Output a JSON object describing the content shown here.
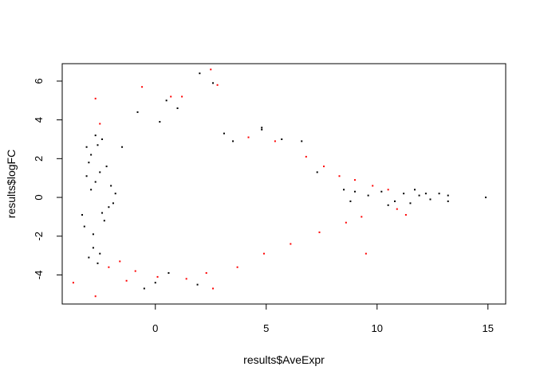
{
  "chart_data": {
    "type": "scatter",
    "title": "",
    "xlabel": "results$AveExpr",
    "ylabel": "results$logFC",
    "xlim": [
      -4.2,
      15.8
    ],
    "ylim": [
      -5.5,
      6.9
    ],
    "x_ticks": [
      0,
      5,
      10,
      15
    ],
    "y_ticks": [
      -4,
      -2,
      0,
      2,
      4,
      6
    ],
    "grid": false,
    "legend": "none",
    "series": [
      {
        "color": "#000000",
        "points": [
          [
            -3.1,
            2.6
          ],
          [
            -2.9,
            2.2
          ],
          [
            -3.3,
            -0.9
          ],
          [
            -2.8,
            -2.6
          ],
          [
            -3.0,
            1.8
          ],
          [
            -2.7,
            3.2
          ],
          [
            -3.2,
            -1.5
          ],
          [
            -2.9,
            0.4
          ],
          [
            -3.0,
            -3.1
          ],
          [
            -2.6,
            2.7
          ],
          [
            -2.5,
            -2.9
          ],
          [
            -3.1,
            1.1
          ],
          [
            -2.8,
            -1.9
          ],
          [
            -2.4,
            3.0
          ],
          [
            -2.6,
            -3.4
          ],
          [
            -2.2,
            1.6
          ],
          [
            -2.3,
            -1.2
          ],
          [
            -2.7,
            0.8
          ],
          [
            -2.1,
            -0.5
          ],
          [
            -2.0,
            0.6
          ],
          [
            -1.9,
            -0.3
          ],
          [
            -1.8,
            0.2
          ],
          [
            -2.4,
            -0.8
          ],
          [
            -2.5,
            1.3
          ],
          [
            -1.5,
            2.6
          ],
          [
            -0.8,
            4.4
          ],
          [
            0.2,
            3.9
          ],
          [
            0.5,
            5.0
          ],
          [
            1.0,
            4.6
          ],
          [
            2.0,
            6.4
          ],
          [
            2.6,
            5.9
          ],
          [
            3.1,
            3.3
          ],
          [
            3.5,
            2.9
          ],
          [
            4.8,
            3.6
          ],
          [
            4.8,
            3.5
          ],
          [
            5.7,
            3.0
          ],
          [
            6.6,
            2.9
          ],
          [
            7.3,
            1.3
          ],
          [
            -0.5,
            -4.7
          ],
          [
            0.0,
            -4.4
          ],
          [
            1.9,
            -4.5
          ],
          [
            0.6,
            -3.9
          ],
          [
            8.5,
            0.4
          ],
          [
            8.8,
            -0.2
          ],
          [
            9.0,
            0.3
          ],
          [
            9.6,
            0.1
          ],
          [
            10.2,
            0.3
          ],
          [
            10.8,
            -0.2
          ],
          [
            11.2,
            0.2
          ],
          [
            11.5,
            -0.3
          ],
          [
            11.9,
            0.1
          ],
          [
            12.2,
            0.2
          ],
          [
            12.4,
            -0.1
          ],
          [
            12.8,
            0.2
          ],
          [
            13.2,
            0.1
          ],
          [
            13.2,
            -0.2
          ],
          [
            14.9,
            0.0
          ],
          [
            11.7,
            0.4
          ],
          [
            10.5,
            -0.4
          ]
        ]
      },
      {
        "color": "#ff0000",
        "points": [
          [
            -2.7,
            5.1
          ],
          [
            0.7,
            5.2
          ],
          [
            2.5,
            6.6
          ],
          [
            1.2,
            5.2
          ],
          [
            2.8,
            5.8
          ],
          [
            -0.6,
            5.7
          ],
          [
            -3.7,
            -4.4
          ],
          [
            -2.7,
            -5.1
          ],
          [
            2.6,
            -4.7
          ],
          [
            -1.3,
            -4.3
          ],
          [
            0.1,
            -4.1
          ],
          [
            9.5,
            -2.9
          ],
          [
            -2.5,
            3.8
          ],
          [
            -2.1,
            -3.6
          ],
          [
            4.2,
            3.1
          ],
          [
            5.4,
            2.9
          ],
          [
            6.8,
            2.1
          ],
          [
            7.6,
            1.6
          ],
          [
            8.3,
            1.1
          ],
          [
            9.0,
            0.9
          ],
          [
            9.8,
            0.6
          ],
          [
            10.5,
            0.4
          ],
          [
            11.3,
            -0.9
          ],
          [
            10.9,
            -0.6
          ],
          [
            9.3,
            -1.0
          ],
          [
            8.6,
            -1.3
          ],
          [
            7.4,
            -1.8
          ],
          [
            6.1,
            -2.4
          ],
          [
            4.9,
            -2.9
          ],
          [
            3.7,
            -3.6
          ],
          [
            2.3,
            -3.9
          ],
          [
            1.4,
            -4.2
          ],
          [
            -0.9,
            -3.8
          ],
          [
            -1.6,
            -3.3
          ]
        ]
      }
    ]
  }
}
